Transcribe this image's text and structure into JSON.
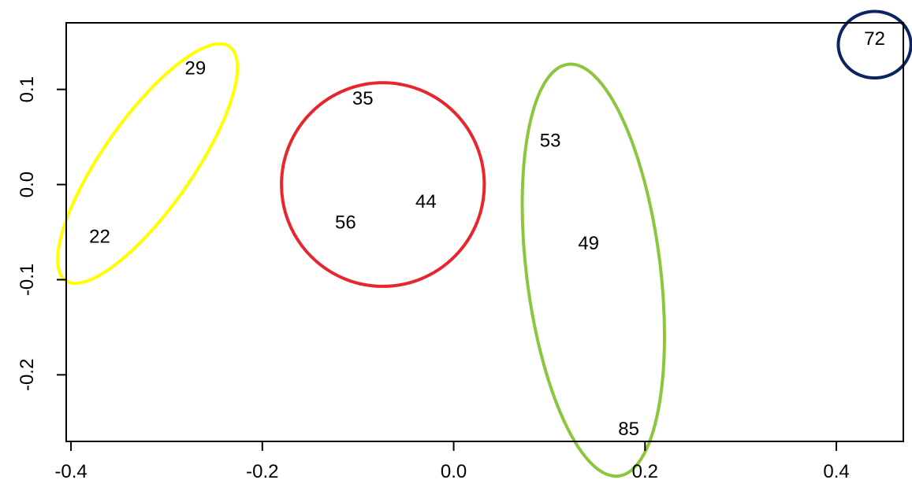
{
  "chart_data": {
    "type": "scatter",
    "title": "",
    "xlabel": "",
    "ylabel": "",
    "xlim": [
      -0.405,
      0.47
    ],
    "ylim": [
      -0.27,
      0.17
    ],
    "grid": false,
    "x_ticks": [
      -0.4,
      -0.2,
      0.0,
      0.2,
      0.4
    ],
    "x_tick_labels": [
      "-0.4",
      "-0.2",
      "0.0",
      "0.2",
      "0.4"
    ],
    "y_ticks": [
      -0.2,
      -0.1,
      0.0,
      0.1
    ],
    "y_tick_labels": [
      "-0.2",
      "-0.1",
      "0.0",
      "0.1"
    ],
    "points": [
      {
        "label": "29",
        "x": -0.27,
        "y": 0.122
      },
      {
        "label": "22",
        "x": -0.37,
        "y": -0.055
      },
      {
        "label": "35",
        "x": -0.095,
        "y": 0.09
      },
      {
        "label": "56",
        "x": -0.113,
        "y": -0.04
      },
      {
        "label": "44",
        "x": -0.029,
        "y": -0.018
      },
      {
        "label": "53",
        "x": 0.101,
        "y": 0.046
      },
      {
        "label": "49",
        "x": 0.141,
        "y": -0.062
      },
      {
        "label": "85",
        "x": 0.183,
        "y": -0.257
      },
      {
        "label": "72",
        "x": 0.44,
        "y": 0.153
      }
    ],
    "clusters": [
      {
        "color": "#ffff00",
        "cx": -0.32,
        "cy": 0.022,
        "rx": 0.047,
        "ry": 0.15,
        "rotation_deg": 35
      },
      {
        "color": "#e8262d",
        "cx": -0.074,
        "cy": 0.0,
        "rx": 0.106,
        "ry": 0.107,
        "rotation_deg": 0
      },
      {
        "color": "#8cc63f",
        "cx": 0.146,
        "cy": -0.09,
        "rx": 0.07,
        "ry": 0.218,
        "rotation_deg": -7
      },
      {
        "color": "#0c2461",
        "cx": 0.44,
        "cy": 0.147,
        "rx": 0.038,
        "ry": 0.035,
        "rotation_deg": 0
      }
    ]
  }
}
